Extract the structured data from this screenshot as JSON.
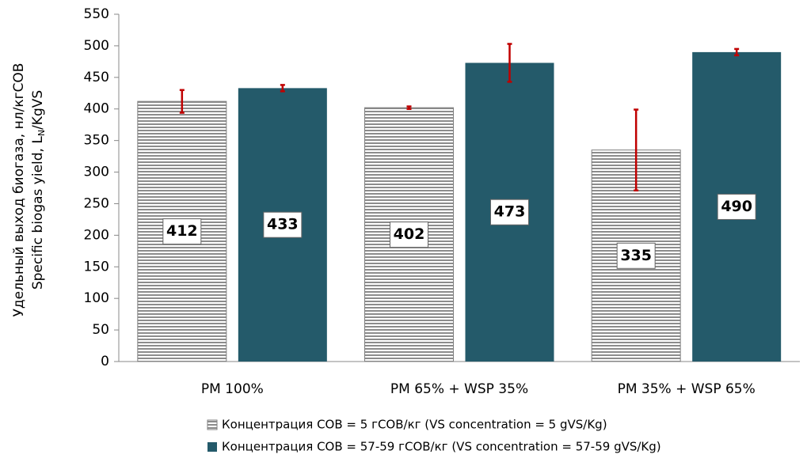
{
  "chart_data": {
    "type": "bar",
    "ylabel": {
      "line1": "Удельный выход биогаза, нл/кгСОВ",
      "line2": [
        "Specific biogas yield, L",
        "N",
        "/KgVS"
      ]
    },
    "categories": [
      "PM 100%",
      "PM 65% + WSP 35%",
      "PM 35% + WSP 65%"
    ],
    "series": [
      {
        "name": "Концентрация  СОВ = 5 гСОВ/кг (VS concentration = 5 gVS/Kg)",
        "color": "#7f7f7f",
        "pattern": "horizontal-stripes",
        "values": [
          412,
          402,
          335
        ],
        "errors": [
          18,
          2,
          64
        ]
      },
      {
        "name": "Концентрация  СОВ = 57-59 гСОВ/кг (VS concentration = 57-59 gVS/Kg)",
        "color": "#245a6a",
        "values": [
          433,
          473,
          490
        ],
        "errors": [
          5,
          30,
          5
        ]
      }
    ],
    "error_color": "#c00000",
    "ylim": [
      0,
      550
    ],
    "yticks": [
      0,
      50,
      100,
      150,
      200,
      250,
      300,
      350,
      400,
      450,
      500,
      550
    ],
    "legend": "bottom"
  }
}
